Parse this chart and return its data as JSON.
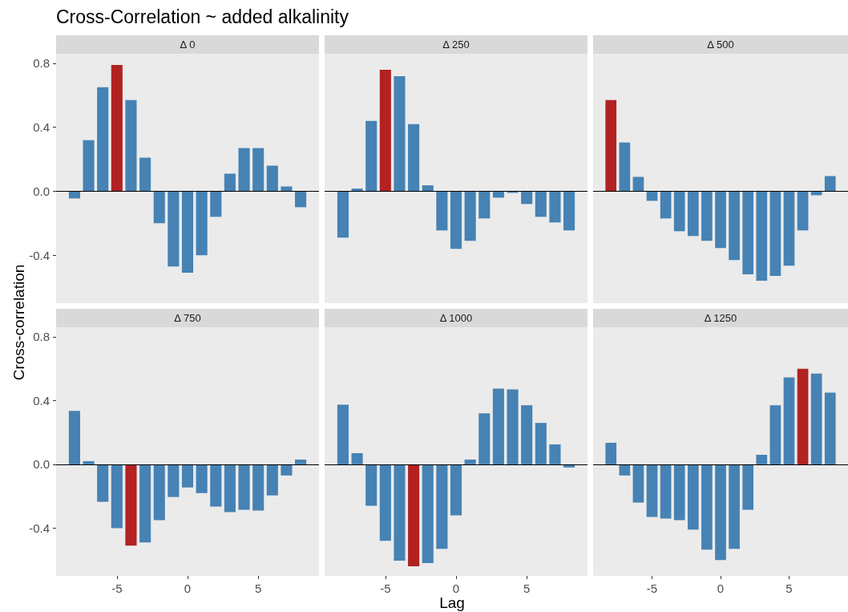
{
  "chart_data": [
    {
      "type": "bar",
      "title": "Δ 0",
      "annotations": [
        "Cross-Correlation ~ added alkalinity"
      ],
      "ylabel": "Cross-correlation",
      "x": [
        -8,
        -7,
        -6,
        -5,
        -4,
        -3,
        -2,
        -1,
        0,
        1,
        2,
        3,
        4,
        5,
        6,
        7,
        8
      ],
      "values": [
        -0.045,
        0.32,
        0.65,
        0.79,
        0.57,
        0.21,
        -0.2,
        -0.47,
        -0.51,
        -0.4,
        -0.16,
        0.11,
        0.27,
        0.27,
        0.16,
        0.03,
        -0.1
      ],
      "colors": [
        "#4682b4",
        "#4682b4",
        "#4682b4",
        "#b22222",
        "#4682b4",
        "#4682b4",
        "#4682b4",
        "#4682b4",
        "#4682b4",
        "#4682b4",
        "#4682b4",
        "#4682b4",
        "#4682b4",
        "#4682b4",
        "#4682b4",
        "#4682b4",
        "#4682b4"
      ],
      "xlim": [
        -9.3,
        9.3
      ],
      "ylim": [
        -0.7,
        0.86
      ],
      "yticks": [
        -0.4,
        {
          "value": 0,
          "label": "0.0"
        },
        0.4,
        0.8
      ],
      "ref_lines": [
        {
          "axis": "y",
          "value": 0,
          "color": "#000000"
        }
      ],
      "tick_labels": "y"
    },
    {
      "type": "bar",
      "title": "Δ 250",
      "x": [
        -8,
        -7,
        -6,
        -5,
        -4,
        -3,
        -2,
        -1,
        0,
        1,
        2,
        3,
        4,
        5,
        6,
        7,
        8
      ],
      "values": [
        -0.29,
        0.017,
        0.44,
        0.76,
        0.72,
        0.42,
        0.037,
        -0.245,
        -0.36,
        -0.31,
        -0.17,
        -0.04,
        -0.01,
        -0.08,
        -0.16,
        -0.195,
        -0.245
      ],
      "colors": [
        "#4682b4",
        "#4682b4",
        "#4682b4",
        "#b22222",
        "#4682b4",
        "#4682b4",
        "#4682b4",
        "#4682b4",
        "#4682b4",
        "#4682b4",
        "#4682b4",
        "#4682b4",
        "#4682b4",
        "#4682b4",
        "#4682b4",
        "#4682b4",
        "#4682b4"
      ],
      "xlim": [
        -9.3,
        9.3
      ],
      "ylim": [
        -0.7,
        0.86
      ],
      "ref_lines": [
        {
          "axis": "y",
          "value": 0,
          "color": "#000000"
        }
      ],
      "tick_labels": false
    },
    {
      "type": "bar",
      "title": "Δ 500",
      "x": [
        -8,
        -7,
        -6,
        -5,
        -4,
        -3,
        -2,
        -1,
        0,
        1,
        2,
        3,
        4,
        5,
        6,
        7,
        8
      ],
      "values": [
        0.57,
        0.305,
        0.09,
        -0.06,
        -0.17,
        -0.25,
        -0.28,
        -0.31,
        -0.355,
        -0.43,
        -0.52,
        -0.56,
        -0.53,
        -0.465,
        -0.245,
        -0.025,
        0.095
      ],
      "colors": [
        "#b22222",
        "#4682b4",
        "#4682b4",
        "#4682b4",
        "#4682b4",
        "#4682b4",
        "#4682b4",
        "#4682b4",
        "#4682b4",
        "#4682b4",
        "#4682b4",
        "#4682b4",
        "#4682b4",
        "#4682b4",
        "#4682b4",
        "#4682b4",
        "#4682b4"
      ],
      "xlim": [
        -9.3,
        9.3
      ],
      "ylim": [
        -0.7,
        0.86
      ],
      "ref_lines": [
        {
          "axis": "y",
          "value": 0,
          "color": "#000000"
        }
      ],
      "tick_labels": false
    },
    {
      "type": "bar",
      "title": "Δ 750",
      "x": [
        -8,
        -7,
        -6,
        -5,
        -4,
        -3,
        -2,
        -1,
        0,
        1,
        2,
        3,
        4,
        5,
        6,
        7,
        8
      ],
      "values": [
        0.335,
        0.02,
        -0.235,
        -0.4,
        -0.51,
        -0.49,
        -0.35,
        -0.205,
        -0.145,
        -0.18,
        -0.265,
        -0.3,
        -0.285,
        -0.29,
        -0.195,
        -0.07,
        0.03
      ],
      "colors": [
        "#4682b4",
        "#4682b4",
        "#4682b4",
        "#4682b4",
        "#b22222",
        "#4682b4",
        "#4682b4",
        "#4682b4",
        "#4682b4",
        "#4682b4",
        "#4682b4",
        "#4682b4",
        "#4682b4",
        "#4682b4",
        "#4682b4",
        "#4682b4",
        "#4682b4"
      ],
      "xlim": [
        -9.3,
        9.3
      ],
      "xticks": [
        -5,
        0,
        5
      ],
      "ylim": [
        -0.7,
        0.86
      ],
      "yticks": [
        -0.4,
        {
          "value": 0,
          "label": "0.0"
        },
        0.4,
        0.8
      ],
      "ref_lines": [
        {
          "axis": "y",
          "value": 0,
          "color": "#000000"
        }
      ]
    },
    {
      "type": "bar",
      "title": "Δ 1000",
      "xlabel": "Lag",
      "x": [
        -8,
        -7,
        -6,
        -5,
        -4,
        -3,
        -2,
        -1,
        0,
        1,
        2,
        3,
        4,
        5,
        6,
        7,
        8
      ],
      "values": [
        0.375,
        0.07,
        -0.26,
        -0.48,
        -0.605,
        -0.64,
        -0.62,
        -0.53,
        -0.32,
        0.03,
        0.32,
        0.475,
        0.47,
        0.37,
        0.26,
        0.125,
        -0.02
      ],
      "colors": [
        "#4682b4",
        "#4682b4",
        "#4682b4",
        "#4682b4",
        "#4682b4",
        "#b22222",
        "#4682b4",
        "#4682b4",
        "#4682b4",
        "#4682b4",
        "#4682b4",
        "#4682b4",
        "#4682b4",
        "#4682b4",
        "#4682b4",
        "#4682b4",
        "#4682b4"
      ],
      "xlim": [
        -9.3,
        9.3
      ],
      "xticks": [
        -5,
        0,
        5
      ],
      "ylim": [
        -0.7,
        0.86
      ],
      "ref_lines": [
        {
          "axis": "y",
          "value": 0,
          "color": "#000000"
        }
      ],
      "tick_labels": "x"
    },
    {
      "type": "bar",
      "title": "Δ 1250",
      "x": [
        -8,
        -7,
        -6,
        -5,
        -4,
        -3,
        -2,
        -1,
        0,
        1,
        2,
        3,
        4,
        5,
        6,
        7,
        8
      ],
      "values": [
        0.135,
        -0.07,
        -0.24,
        -0.33,
        -0.34,
        -0.35,
        -0.41,
        -0.535,
        -0.6,
        -0.53,
        -0.285,
        0.06,
        0.37,
        0.545,
        0.6,
        0.57,
        0.45
      ],
      "colors": [
        "#4682b4",
        "#4682b4",
        "#4682b4",
        "#4682b4",
        "#4682b4",
        "#4682b4",
        "#4682b4",
        "#4682b4",
        "#4682b4",
        "#4682b4",
        "#4682b4",
        "#4682b4",
        "#4682b4",
        "#4682b4",
        "#b22222",
        "#4682b4",
        "#4682b4"
      ],
      "xlim": [
        -9.3,
        9.3
      ],
      "xticks": [
        -5,
        0,
        5
      ],
      "ylim": [
        -0.7,
        0.86
      ],
      "ref_lines": [
        {
          "axis": "y",
          "value": 0,
          "color": "#000000"
        }
      ],
      "tick_labels": "x"
    }
  ]
}
